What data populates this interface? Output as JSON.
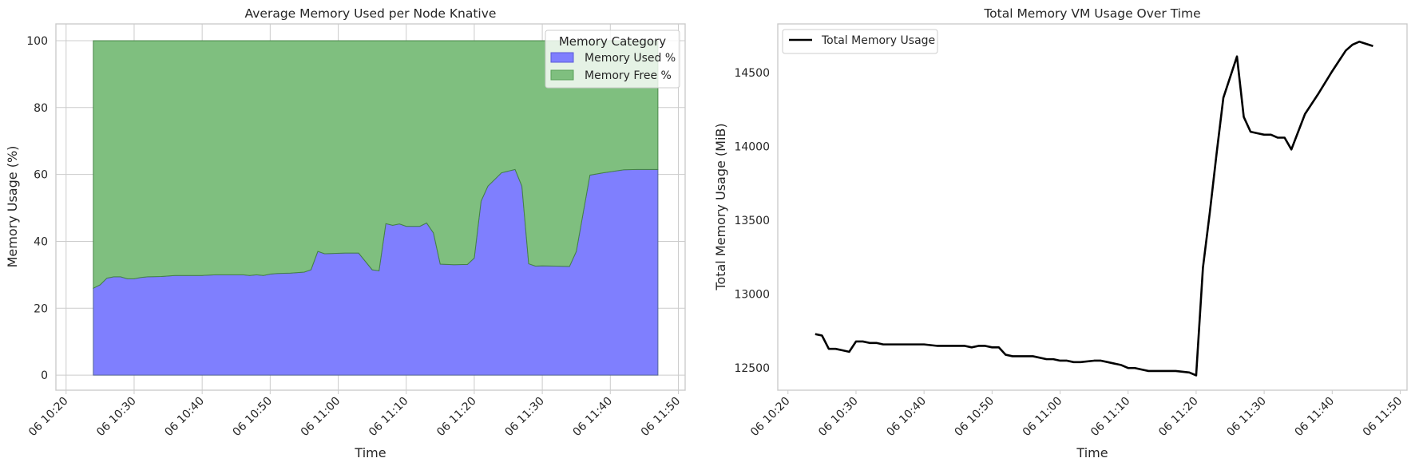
{
  "chart_data": [
    {
      "type": "area",
      "stacked": true,
      "title": "Average Memory Used per Node Knative",
      "xlabel": "Time",
      "ylabel": "Memory Usage (%)",
      "xlim": [
        "06 10:18:30",
        "06 11:51:00"
      ],
      "ylim": [
        -4.5,
        105
      ],
      "x_ticks": [
        "06 10:20",
        "06 10:30",
        "06 10:40",
        "06 10:50",
        "06 11:00",
        "06 11:10",
        "06 11:20",
        "06 11:30",
        "06 11:40",
        "06 11:50"
      ],
      "y_ticks": [
        0,
        20,
        40,
        60,
        80,
        100
      ],
      "grid": true,
      "legend": {
        "title": "Memory Category",
        "placement": "upper right"
      },
      "x": [
        "10:24",
        "10:25",
        "10:26",
        "10:27",
        "10:28",
        "10:29",
        "10:30",
        "10:31",
        "10:32",
        "10:34",
        "10:36",
        "10:38",
        "10:40",
        "10:42",
        "10:44",
        "10:46",
        "10:47",
        "10:48",
        "10:49",
        "10:50",
        "10:51",
        "10:53",
        "10:55",
        "10:56",
        "10:57",
        "10:58",
        "11:01",
        "11:03",
        "11:05",
        "11:06",
        "11:07",
        "11:08",
        "11:09",
        "11:10",
        "11:11",
        "11:12",
        "11:13",
        "11:14",
        "11:15",
        "11:17",
        "11:19",
        "11:20",
        "11:21",
        "11:22",
        "11:23",
        "11:24",
        "11:25",
        "11:26",
        "11:27",
        "11:28",
        "11:29",
        "11:30",
        "11:32",
        "11:34",
        "11:35",
        "11:37",
        "11:39",
        "11:42",
        "11:44",
        "11:46",
        "11:47"
      ],
      "series": [
        {
          "name": "Memory Used %",
          "color": "#7f7ffe",
          "values": [
            26,
            27,
            29,
            29.4,
            29.4,
            28.8,
            28.8,
            29.2,
            29.4,
            29.5,
            29.8,
            29.8,
            29.8,
            30,
            30,
            30,
            29.8,
            30,
            29.8,
            30.2,
            30.4,
            30.5,
            30.8,
            31.5,
            37,
            36.3,
            36.5,
            36.5,
            31.5,
            31.2,
            45.3,
            44.8,
            45.2,
            44.5,
            44.5,
            44.5,
            45.5,
            42.5,
            33.2,
            33,
            33.1,
            35,
            52,
            56.5,
            58.5,
            60.5,
            61,
            61.5,
            56.5,
            33.3,
            32.6,
            32.7,
            32.6,
            32.5,
            37,
            59.8,
            60.5,
            61.4,
            61.5,
            61.5,
            61.5
          ]
        },
        {
          "name": "Memory Free %",
          "color": "#7fbf7f",
          "values": [
            74,
            73,
            71,
            70.6,
            70.6,
            71.2,
            71.2,
            70.8,
            70.6,
            70.5,
            70.2,
            70.2,
            70.2,
            70,
            70,
            70,
            70.2,
            70,
            70.2,
            69.8,
            69.6,
            69.5,
            69.2,
            68.5,
            63,
            63.7,
            63.5,
            63.5,
            68.5,
            68.8,
            54.7,
            55.2,
            54.8,
            55.5,
            55.5,
            55.5,
            54.5,
            57.5,
            66.8,
            67,
            66.9,
            65,
            48,
            43.5,
            41.5,
            39.5,
            39,
            38.5,
            43.5,
            66.7,
            67.4,
            67.3,
            67.4,
            67.5,
            63,
            40.2,
            39.5,
            38.6,
            38.5,
            38.5,
            38.5
          ]
        }
      ]
    },
    {
      "type": "line",
      "title": "Total Memory VM Usage Over Time",
      "xlabel": "Time",
      "ylabel": "Total Memory Usage (MiB)",
      "xlim": [
        "06 10:18:30",
        "06 11:51:00"
      ],
      "ylim": [
        12350,
        14830
      ],
      "x_ticks": [
        "06 10:20",
        "06 10:30",
        "06 10:40",
        "06 10:50",
        "06 11:00",
        "06 11:10",
        "06 11:20",
        "06 11:30",
        "06 11:40",
        "06 11:50"
      ],
      "y_ticks": [
        12500,
        13000,
        13500,
        14000,
        14500
      ],
      "grid": false,
      "legend": {
        "placement": "upper left"
      },
      "x": [
        "10:24",
        "10:25",
        "10:26",
        "10:27",
        "10:28",
        "10:29",
        "10:30",
        "10:31",
        "10:32",
        "10:33",
        "10:34",
        "10:36",
        "10:38",
        "10:40",
        "10:42",
        "10:44",
        "10:45",
        "10:46",
        "10:47",
        "10:48",
        "10:49",
        "10:50",
        "10:51",
        "10:52",
        "10:53",
        "10:55",
        "10:56",
        "10:58",
        "10:59",
        "11:00",
        "11:01",
        "11:02",
        "11:03",
        "11:05",
        "11:06",
        "11:07",
        "11:08",
        "11:09",
        "11:10",
        "11:11",
        "11:12",
        "11:13",
        "11:14",
        "11:15",
        "11:17",
        "11:19",
        "11:20",
        "11:21",
        "11:22",
        "11:23",
        "11:24",
        "11:26",
        "11:27",
        "11:28",
        "11:29",
        "11:30",
        "11:31",
        "11:32",
        "11:33",
        "11:34",
        "11:36",
        "11:38",
        "11:40",
        "11:41",
        "11:42",
        "11:43",
        "11:44",
        "11:46"
      ],
      "series": [
        {
          "name": "Total Memory Usage",
          "color": "#000000",
          "values": [
            12730,
            12720,
            12630,
            12630,
            12620,
            12610,
            12680,
            12680,
            12670,
            12670,
            12660,
            12660,
            12660,
            12660,
            12650,
            12650,
            12650,
            12650,
            12640,
            12650,
            12650,
            12640,
            12640,
            12590,
            12580,
            12580,
            12580,
            12560,
            12560,
            12550,
            12550,
            12540,
            12540,
            12550,
            12550,
            12540,
            12530,
            12520,
            12500,
            12500,
            12490,
            12480,
            12480,
            12480,
            12480,
            12470,
            12450,
            13180,
            13550,
            13950,
            14330,
            14610,
            14200,
            14100,
            14090,
            14080,
            14080,
            14060,
            14060,
            13980,
            14220,
            14360,
            14510,
            14580,
            14650,
            14690,
            14710,
            14680
          ]
        }
      ]
    }
  ]
}
